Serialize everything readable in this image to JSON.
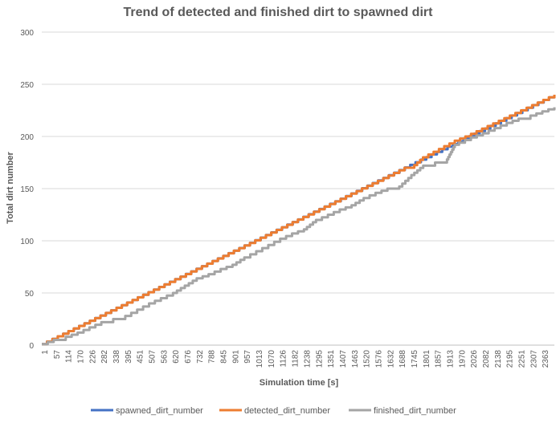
{
  "chart_data": {
    "type": "line",
    "title": "Trend of detected and finished dirt to spawned dirt",
    "xlabel": "Simulation time [s]",
    "ylabel": "Total dirt number",
    "ylim": [
      0,
      300
    ],
    "xlim": [
      1,
      2420
    ],
    "yticks": [
      0,
      50,
      100,
      150,
      200,
      250,
      300
    ],
    "xtick_labels": [
      "1",
      "57",
      "114",
      "170",
      "226",
      "282",
      "338",
      "395",
      "451",
      "507",
      "563",
      "620",
      "676",
      "732",
      "788",
      "845",
      "901",
      "957",
      "1013",
      "1070",
      "1126",
      "1182",
      "1238",
      "1295",
      "1351",
      "1407",
      "1463",
      "1520",
      "1576",
      "1632",
      "1688",
      "1745",
      "1801",
      "1857",
      "1913",
      "1970",
      "2026",
      "2082",
      "2138",
      "2195",
      "2251",
      "2307",
      "2363"
    ],
    "grid": true,
    "legend_position": "bottom",
    "series": [
      {
        "name": "spawned_dirt_number",
        "color": "#4472C4",
        "points": [
          [
            1,
            1
          ],
          [
            2420,
            240
          ]
        ]
      },
      {
        "name": "detected_dirt_number",
        "color": "#ED7D31",
        "points": [
          [
            1,
            1
          ],
          [
            1713,
            170
          ],
          [
            1745,
            170
          ],
          [
            1800,
            180
          ],
          [
            1950,
            196
          ],
          [
            2000,
            200
          ],
          [
            2420,
            240
          ]
        ]
      },
      {
        "name": "finished_dirt_number",
        "color": "#A5A5A5",
        "points": [
          [
            1,
            1
          ],
          [
            57,
            5
          ],
          [
            114,
            8
          ],
          [
            170,
            12
          ],
          [
            226,
            17
          ],
          [
            282,
            22
          ],
          [
            338,
            25
          ],
          [
            395,
            28
          ],
          [
            451,
            34
          ],
          [
            507,
            40
          ],
          [
            563,
            45
          ],
          [
            620,
            50
          ],
          [
            676,
            57
          ],
          [
            732,
            64
          ],
          [
            788,
            68
          ],
          [
            845,
            73
          ],
          [
            901,
            77
          ],
          [
            957,
            84
          ],
          [
            1013,
            90
          ],
          [
            1070,
            96
          ],
          [
            1126,
            102
          ],
          [
            1182,
            107
          ],
          [
            1238,
            111
          ],
          [
            1295,
            120
          ],
          [
            1351,
            125
          ],
          [
            1407,
            130
          ],
          [
            1463,
            134
          ],
          [
            1520,
            141
          ],
          [
            1576,
            146
          ],
          [
            1632,
            150
          ],
          [
            1688,
            152
          ],
          [
            1745,
            163
          ],
          [
            1801,
            172
          ],
          [
            1857,
            175
          ],
          [
            1913,
            178
          ],
          [
            1950,
            192
          ],
          [
            1970,
            194
          ],
          [
            2026,
            199
          ],
          [
            2082,
            203
          ],
          [
            2138,
            208
          ],
          [
            2195,
            213
          ],
          [
            2251,
            217
          ],
          [
            2307,
            220
          ],
          [
            2363,
            224
          ],
          [
            2420,
            228
          ]
        ]
      }
    ]
  }
}
